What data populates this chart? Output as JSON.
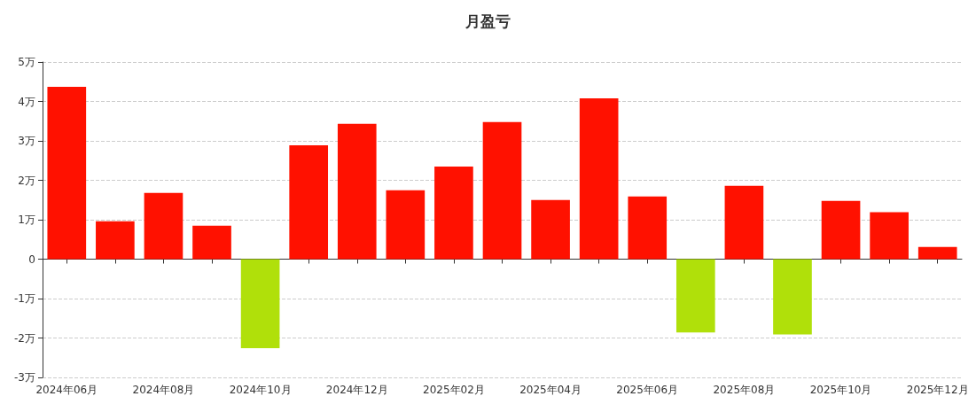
{
  "chart_data": {
    "type": "bar",
    "title": "月盈亏",
    "categories": [
      "2024年06月",
      null,
      "2024年08月",
      null,
      "2024年10月",
      null,
      "2024年12月",
      null,
      "2025年02月",
      null,
      "2025年04月",
      null,
      "2025年06月",
      null,
      "2025年08月",
      null,
      "2025年10月",
      null,
      "2025年12月"
    ],
    "values": [
      4.37,
      0.96,
      1.68,
      0.85,
      -2.26,
      2.89,
      3.43,
      1.75,
      2.35,
      3.48,
      1.5,
      4.08,
      1.59,
      -1.86,
      1.86,
      -1.91,
      1.48,
      1.19,
      0.31
    ],
    "colors": [
      "#ff1100",
      "#ff1100",
      "#ff1100",
      "#ff1100",
      "#b0e00a",
      "#ff1100",
      "#ff1100",
      "#ff1100",
      "#ff1100",
      "#ff1100",
      "#ff1100",
      "#ff1100",
      "#ff1100",
      "#b0e00a",
      "#ff1100",
      "#b0e00a",
      "#ff1100",
      "#ff1100",
      "#ff1100"
    ],
    "ylim": [
      -3,
      5
    ],
    "yticks": [
      {
        "value": -3,
        "label": "-3万"
      },
      {
        "value": -2,
        "label": "-2万"
      },
      {
        "value": -1,
        "label": "-1万"
      },
      0,
      {
        "value": 1,
        "label": "1万"
      },
      {
        "value": 2,
        "label": "2万"
      },
      {
        "value": 3,
        "label": "3万"
      },
      {
        "value": 4,
        "label": "4万"
      },
      {
        "value": 5,
        "label": "5万"
      }
    ],
    "grid": "y"
  }
}
